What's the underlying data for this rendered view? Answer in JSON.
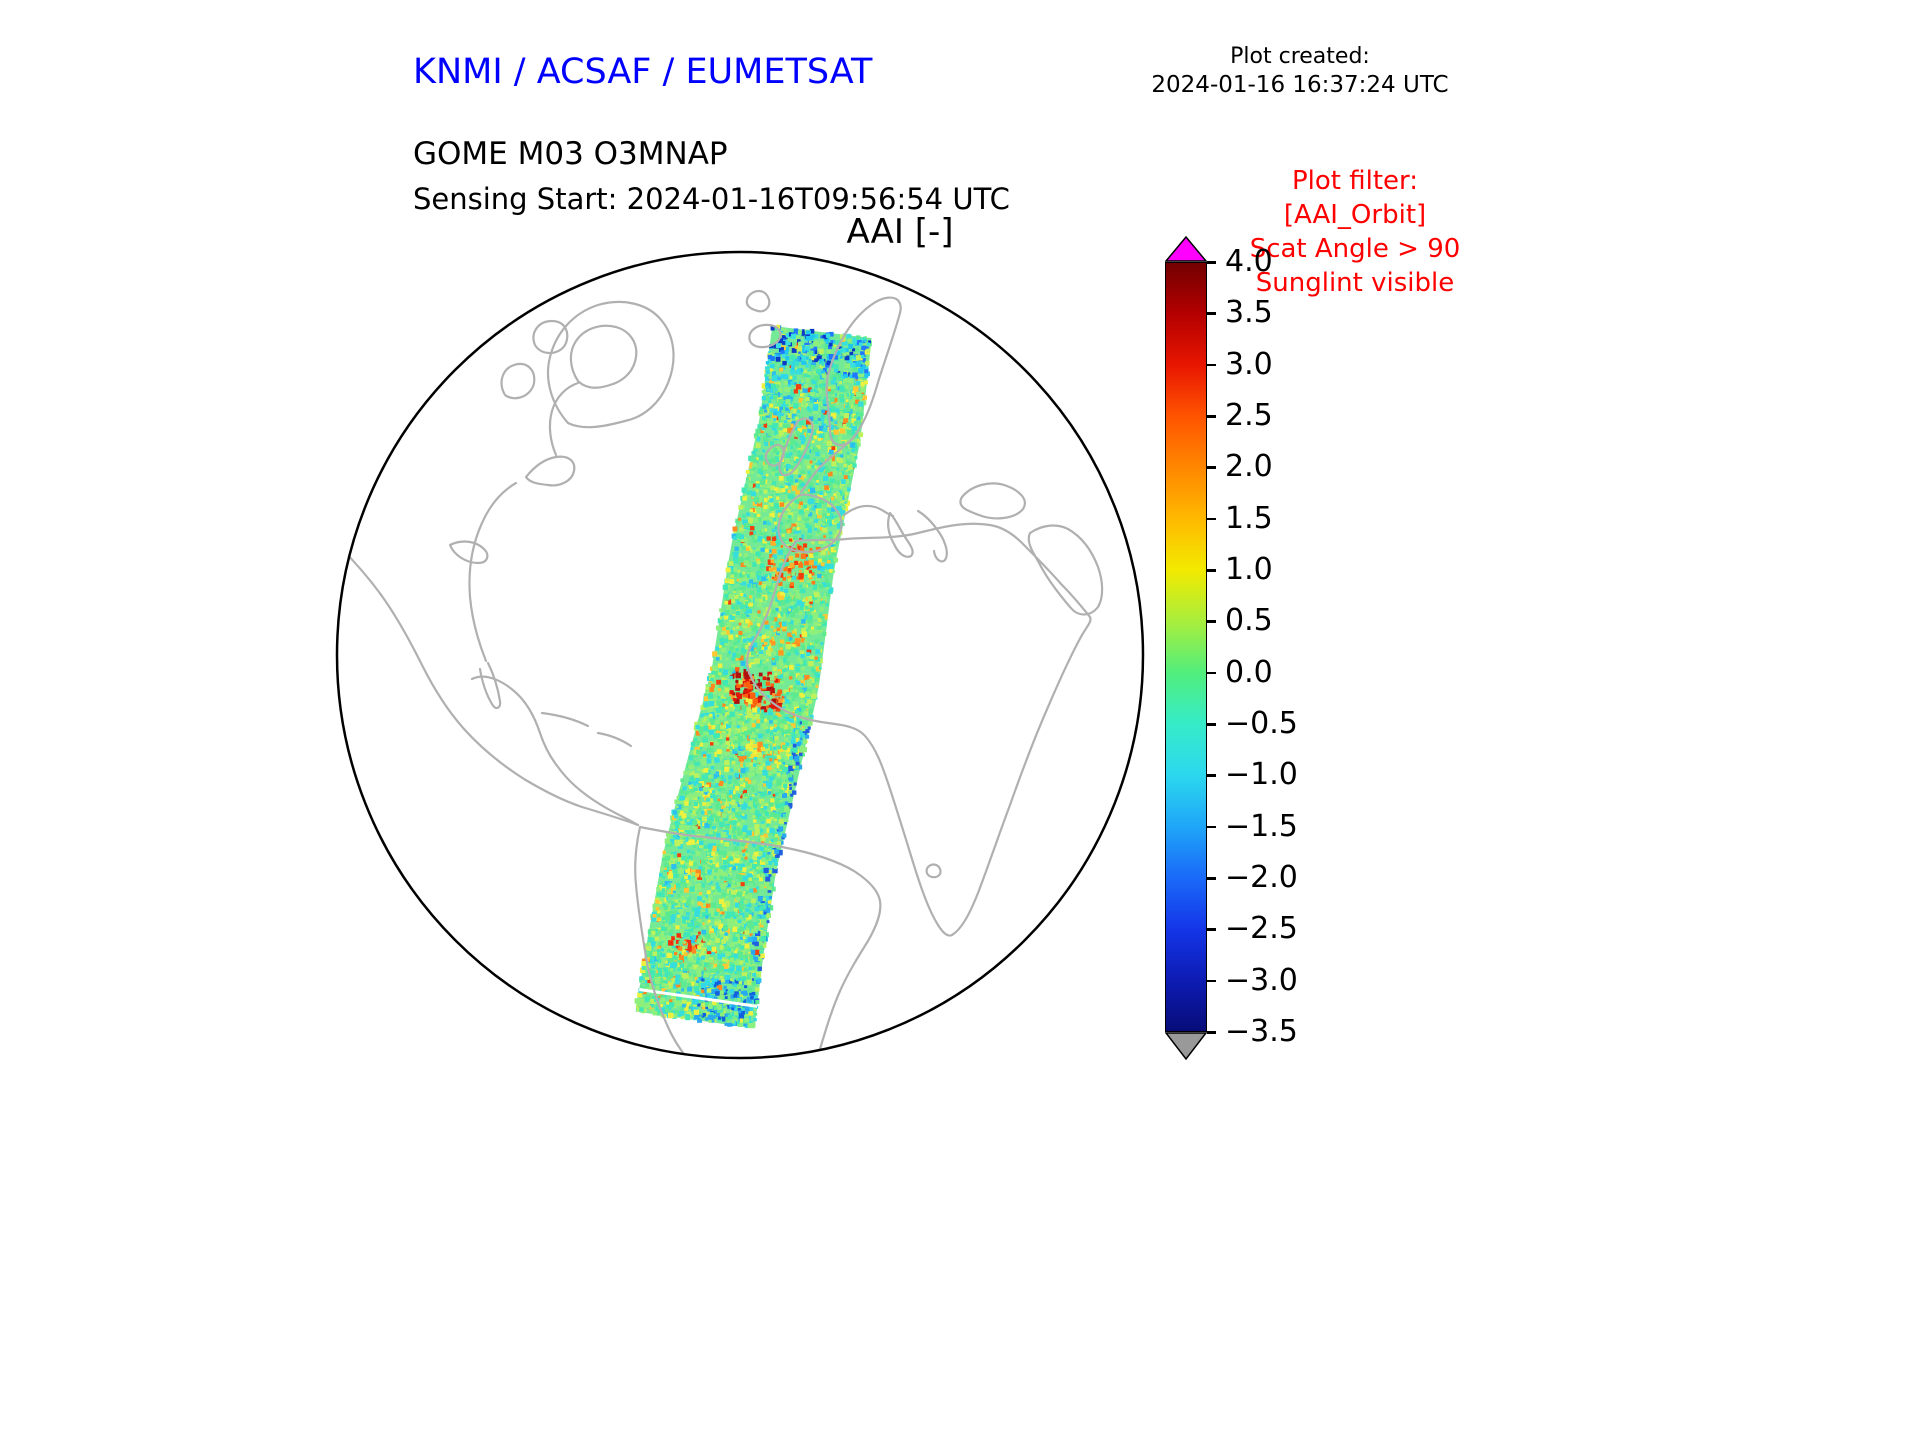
{
  "header": {
    "agency_title": "KNMI / ACSAF / EUMETSAT",
    "agency_color": "#0000ff",
    "created_label": "Plot created:",
    "created_timestamp": "2024-01-16 16:37:24 UTC",
    "product_line": "GOME M03 O3MNAP",
    "sensing_line": "Sensing Start: 2024-01-16T09:56:54 UTC"
  },
  "plot_filter": {
    "color": "#ff0000",
    "lines": [
      "Plot filter:",
      "[AAI_Orbit]",
      "Scat Angle > 90",
      "Sunglint visible"
    ]
  },
  "chart_data": {
    "type": "heatmap",
    "title": "AAI [-]",
    "projection": "orthographic globe centered on Atlantic (Europe, Africa, Americas visible)",
    "variable": "Absorbing Aerosol Index (AAI), unitless",
    "legend_position": "right vertical colorbar with over/under extend arrows",
    "colorbar": {
      "orientation": "vertical",
      "vmax": 4.0,
      "vmin": -3.5,
      "ticks": [
        4.0,
        3.5,
        3.0,
        2.5,
        2.0,
        1.5,
        1.0,
        0.5,
        0.0,
        -0.5,
        -1.0,
        -1.5,
        -2.0,
        -2.5,
        -3.0,
        -3.5
      ],
      "tick_labels": [
        "4.0",
        "3.5",
        "3.0",
        "2.5",
        "2.0",
        "1.5",
        "1.0",
        "0.5",
        "0.0",
        "−0.5",
        "−1.0",
        "−1.5",
        "−2.0",
        "−2.5",
        "−3.0",
        "−3.5"
      ],
      "over_color": "#ff00ff",
      "under_color": "#999999",
      "stops": [
        {
          "value": 4.0,
          "color": "#730000"
        },
        {
          "value": 3.5,
          "color": "#b40000"
        },
        {
          "value": 3.0,
          "color": "#e81600"
        },
        {
          "value": 2.5,
          "color": "#ff5400"
        },
        {
          "value": 2.0,
          "color": "#ff8700"
        },
        {
          "value": 1.5,
          "color": "#ffb900"
        },
        {
          "value": 1.0,
          "color": "#f2ea00"
        },
        {
          "value": 0.5,
          "color": "#a8ee3c"
        },
        {
          "value": 0.0,
          "color": "#52ee7c"
        },
        {
          "value": -0.5,
          "color": "#35ecc8"
        },
        {
          "value": -1.0,
          "color": "#2cd8ee"
        },
        {
          "value": -1.5,
          "color": "#1fa6f8"
        },
        {
          "value": -2.0,
          "color": "#1a6af8"
        },
        {
          "value": -2.5,
          "color": "#1436e8"
        },
        {
          "value": -3.0,
          "color": "#0d1cb4"
        },
        {
          "value": -3.5,
          "color": "#080c78"
        }
      ]
    },
    "map": {
      "coastline_color": "#b0b0b0",
      "globe_outline_color": "#000000",
      "visible_land": [
        "Greenland",
        "North America east",
        "Central America",
        "South America",
        "Europe",
        "Scandinavia",
        "British Isles",
        "Iberia",
        "Africa",
        "Arabian Peninsula",
        "Iceland"
      ]
    },
    "swath": {
      "description": "Single descending orbit swath of AAI values, mostly -0.5..0.5 (green/cyan) with aerosol plumes >1.5 (orange/red) over west Africa and scattered negative (blue) pixels at swath ends",
      "seed": 42,
      "centerline": [
        [
          492,
          87
        ],
        [
          480,
          185
        ],
        [
          452,
          315
        ],
        [
          435,
          435
        ],
        [
          415,
          515
        ],
        [
          390,
          615
        ],
        [
          375,
          705
        ],
        [
          365,
          775
        ]
      ],
      "half_width_start": 50,
      "half_width_end": 60,
      "base_color": "#74e996",
      "n_speckles": 6000,
      "palette": [
        {
          "color": "#8df07c",
          "w": 0.26
        },
        {
          "color": "#5cea90",
          "w": 0.2
        },
        {
          "color": "#3fe8b4",
          "w": 0.14
        },
        {
          "color": "#35dedd",
          "w": 0.12
        },
        {
          "color": "#bdf25c",
          "w": 0.11
        },
        {
          "color": "#eef23f",
          "w": 0.07
        },
        {
          "color": "#ffc832",
          "w": 0.04
        },
        {
          "color": "#2cc0ee",
          "w": 0.03
        },
        {
          "color": "#ff8820",
          "w": 0.02
        },
        {
          "color": "#f04010",
          "w": 0.01
        }
      ],
      "clusters": [
        {
          "t": 0.025,
          "u": 0.0,
          "rt": 0.035,
          "ru": 1.1,
          "prob": 0.6,
          "colors": [
            "#1f78ff",
            "#0a3ac8",
            "#20c8f0",
            "#3ae0e0"
          ]
        },
        {
          "t": 0.09,
          "u": 0.3,
          "rt": 0.05,
          "ru": 0.8,
          "prob": 0.3,
          "colors": [
            "#2fd8e8",
            "#28b0f0",
            "#3ae0c8"
          ]
        },
        {
          "t": 0.29,
          "u": -0.2,
          "rt": 0.025,
          "ru": 0.45,
          "prob": 0.5,
          "colors": [
            "#ff7718",
            "#f23c0c",
            "#ffb028"
          ]
        },
        {
          "t": 0.375,
          "u": -0.2,
          "rt": 0.02,
          "ru": 0.4,
          "prob": 0.35,
          "colors": [
            "#ff9820",
            "#f0d030"
          ]
        },
        {
          "t": 0.45,
          "u": 0.1,
          "rt": 0.03,
          "ru": 0.5,
          "prob": 0.65,
          "colors": [
            "#e01808",
            "#b01010",
            "#ff6010",
            "#ff9830"
          ]
        },
        {
          "t": 0.55,
          "u": -0.3,
          "rt": 0.02,
          "ru": 0.35,
          "prob": 0.3,
          "colors": [
            "#ff8c20",
            "#f2e038"
          ]
        },
        {
          "t": 0.7,
          "u": -0.95,
          "rt": 0.22,
          "ru": 0.15,
          "prob": 0.3,
          "colors": [
            "#28a8f0",
            "#2060e0"
          ]
        },
        {
          "t": 0.86,
          "u": 0.2,
          "rt": 0.02,
          "ru": 0.4,
          "prob": 0.4,
          "colors": [
            "#f03010",
            "#ff8820"
          ]
        },
        {
          "t": 0.96,
          "u": -0.5,
          "rt": 0.05,
          "ru": 0.6,
          "prob": 0.55,
          "colors": [
            "#28a8f0",
            "#1060e0",
            "#30d8e8"
          ]
        }
      ]
    }
  }
}
